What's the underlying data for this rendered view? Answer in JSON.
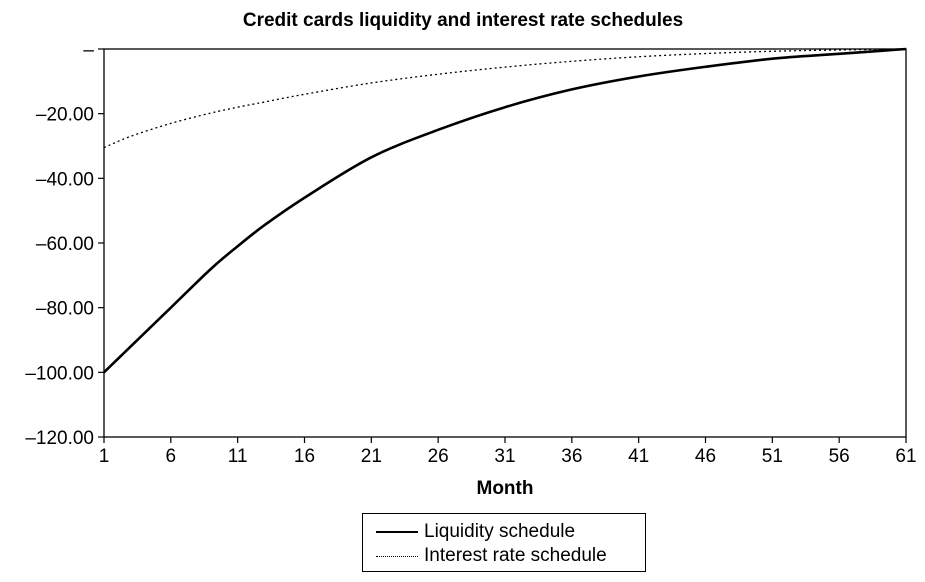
{
  "chart_data": {
    "type": "line",
    "title": "Credit cards liquidity and interest rate schedules",
    "xlabel": "Month",
    "ylabel": "",
    "xlim": [
      1,
      61
    ],
    "ylim": [
      -120,
      0
    ],
    "x_ticks": [
      "1",
      "6",
      "11",
      "16",
      "21",
      "26",
      "31",
      "36",
      "41",
      "46",
      "51",
      "56",
      "61"
    ],
    "y_ticks": [
      "–",
      "–20.00",
      "–40.00",
      "–60.00",
      "–80.00",
      "–100.00",
      "–120.00"
    ],
    "y_tick_values": [
      0,
      -20,
      -40,
      -60,
      -80,
      -100,
      -120
    ],
    "legend_position": "bottom",
    "x": [
      1,
      3,
      6,
      9,
      11,
      13,
      16,
      21,
      26,
      31,
      36,
      41,
      46,
      51,
      56,
      61
    ],
    "series": [
      {
        "name": "Liquidity schedule",
        "style": "solid",
        "values": [
          -100,
          -92,
          -80,
          -68,
          -61,
          -54.5,
          -46,
          -33.5,
          -25,
          -18,
          -12.5,
          -8.5,
          -5.5,
          -3,
          -1.5,
          0
        ]
      },
      {
        "name": "Interest rate schedule",
        "style": "dotted",
        "values": [
          -30.5,
          -27,
          -23,
          -19.8,
          -18,
          -16.4,
          -14,
          -10.5,
          -7.8,
          -5.6,
          -3.8,
          -2.4,
          -1.4,
          -0.7,
          -0.3,
          0
        ]
      }
    ]
  },
  "colors": {
    "line": "#000000",
    "background": "#ffffff"
  }
}
